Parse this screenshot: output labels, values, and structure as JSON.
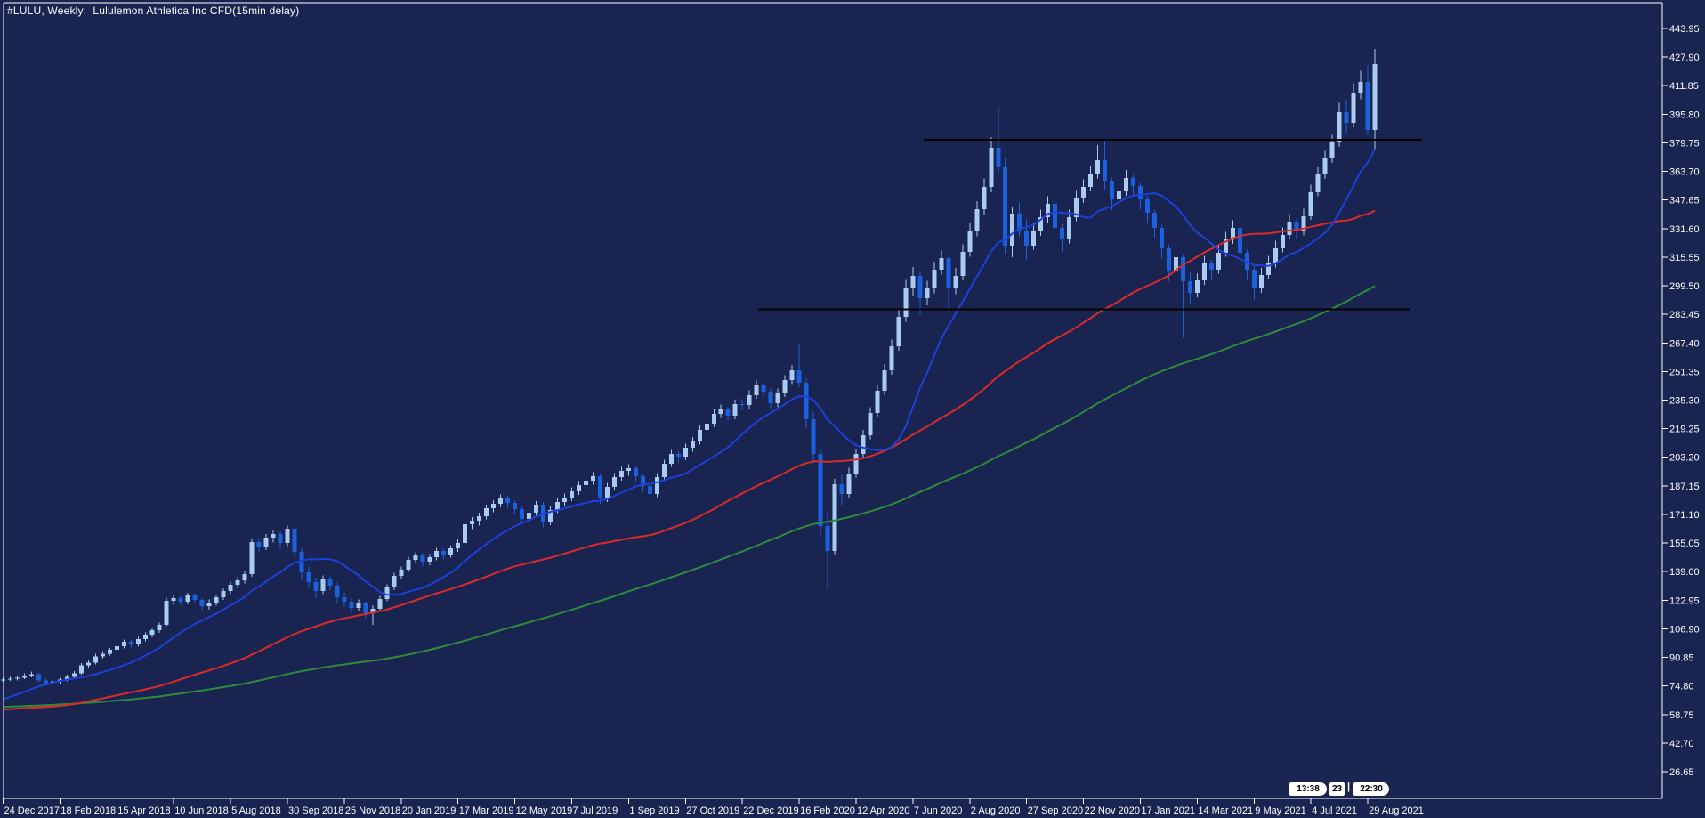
{
  "window": {
    "title": "#LULU, Weekly:  Lululemon Athletica Inc CFD(15min delay)",
    "background": "#192550",
    "frame_color": "#2c3c6a",
    "axis_color": "#ffffff",
    "text_color": "#ffffff"
  },
  "badges": {
    "left": "13:38",
    "mid": "23",
    "separator": "|",
    "right": "22:30"
  },
  "chart_data": {
    "type": "candlestick",
    "title": "#LULU, Weekly:  Lululemon Athletica Inc CFD(15min delay)",
    "symbol": "#LULU",
    "timeframe": "Weekly",
    "grid": false,
    "legend_position": "none",
    "colors": {
      "bull": "#a9cbf2",
      "bear": "#1b60dc",
      "level_line": "#000000"
    },
    "y_axis_ticks": [
      "443.95",
      "427.90",
      "411.85",
      "395.80",
      "379.75",
      "363.70",
      "347.65",
      "331.60",
      "315.55",
      "299.50",
      "283.45",
      "267.40",
      "251.35",
      "235.30",
      "219.25",
      "203.20",
      "187.15",
      "171.10",
      "155.05",
      "139.00",
      "122.95",
      "106.90",
      "90.85",
      "74.80",
      "58.75",
      "42.70",
      "26.65"
    ],
    "x_tick_labels": [
      "24 Dec 2017",
      "18 Feb 2018",
      "15 Apr 2018",
      "10 Jun 2018",
      "5 Aug 2018",
      "30 Sep 2018",
      "25 Nov 2018",
      "20 Jan 2019",
      "17 Mar 2019",
      "12 May 2019",
      "7 Jul 2019",
      "1 Sep 2019",
      "27 Oct 2019",
      "22 Dec 2019",
      "16 Feb 2020",
      "12 Apr 2020",
      "7 Jun 2020",
      "2 Aug 2020",
      "27 Sep 2020",
      "22 Nov 2020",
      "17 Jan 2021",
      "14 Mar 2021",
      "9 May 2021",
      "4 Jul 2021",
      "29 Aug 2021"
    ],
    "weeks_per_x_tick": 8,
    "horizontal_lines": [
      {
        "price": 381.4,
        "from_index": 129.5,
        "to_index": 199.6,
        "color": "#000000"
      },
      {
        "price": 286.3,
        "from_index": 106.3,
        "to_index": 198.0,
        "color": "#000000"
      }
    ],
    "moving_averages": [
      {
        "name": "slow",
        "period": 100,
        "color": "#2e8b3c",
        "width": 2
      },
      {
        "name": "mid",
        "period": 50,
        "color": "#dd2a28",
        "width": 2
      },
      {
        "name": "fast",
        "period": 13,
        "color": "#1c40dc",
        "width": 2
      }
    ],
    "ma_warmup_closes": [
      62,
      63,
      64,
      63,
      62,
      61,
      60,
      59,
      58,
      59,
      60,
      61,
      62,
      63,
      64,
      65,
      64,
      63,
      62,
      63,
      64,
      65,
      66,
      67,
      68,
      67,
      66,
      65,
      64,
      63,
      64,
      65,
      66,
      67,
      68,
      69,
      70,
      69,
      68,
      67,
      66,
      65,
      64,
      63,
      64,
      65,
      66,
      67,
      68,
      67,
      66,
      65,
      66,
      67,
      68,
      67,
      66,
      64,
      62,
      58,
      54,
      50,
      48,
      49,
      51,
      53,
      55,
      57,
      58,
      59,
      60,
      61,
      62,
      61,
      60,
      59,
      58,
      59,
      60,
      61,
      62,
      63,
      62,
      61,
      60,
      59,
      58,
      59,
      60,
      61,
      62,
      61,
      60,
      62,
      64,
      66,
      70,
      74,
      77,
      78.5
    ],
    "candles": [
      [
        78.0,
        79.6,
        76.9,
        78.5
      ],
      [
        78.5,
        80.1,
        77.6,
        78.9
      ],
      [
        78.9,
        80.6,
        77.9,
        79.5
      ],
      [
        79.5,
        81.8,
        78.6,
        80.5
      ],
      [
        80.5,
        82.9,
        79.6,
        81.5
      ],
      [
        81.5,
        82.4,
        76.9,
        78.0
      ],
      [
        78.0,
        79.0,
        75.2,
        76.5
      ],
      [
        76.5,
        78.6,
        75.4,
        77.5
      ],
      [
        77.5,
        79.5,
        76.2,
        78.5
      ],
      [
        78.5,
        81.1,
        77.4,
        80.0
      ],
      [
        80.0,
        83.2,
        79.1,
        82.0
      ],
      [
        82.0,
        87.6,
        81.2,
        86.5
      ],
      [
        86.5,
        89.4,
        85.1,
        88.0
      ],
      [
        88.0,
        92.8,
        87.0,
        91.5
      ],
      [
        91.5,
        94.3,
        90.2,
        93.0
      ],
      [
        93.0,
        96.2,
        91.8,
        95.0
      ],
      [
        95.0,
        98.4,
        93.7,
        97.0
      ],
      [
        97.0,
        100.9,
        95.8,
        99.5
      ],
      [
        99.5,
        100.8,
        96.4,
        98.0
      ],
      [
        98.0,
        102.3,
        96.9,
        101.0
      ],
      [
        101.0,
        104.9,
        99.8,
        103.5
      ],
      [
        103.5,
        107.4,
        102.2,
        106.0
      ],
      [
        106.0,
        110.4,
        104.6,
        109.0
      ],
      [
        109.0,
        124.3,
        108.0,
        122.5
      ],
      [
        122.5,
        126.1,
        120.4,
        124.0
      ],
      [
        124.0,
        125.2,
        119.8,
        122.0
      ],
      [
        122.0,
        127.2,
        120.6,
        125.5
      ],
      [
        125.5,
        126.8,
        121.0,
        123.0
      ],
      [
        123.0,
        124.2,
        117.3,
        119.5
      ],
      [
        119.5,
        123.3,
        117.6,
        121.5
      ],
      [
        121.5,
        126.2,
        119.9,
        124.5
      ],
      [
        124.5,
        129.7,
        123.0,
        128.0
      ],
      [
        128.0,
        133.3,
        126.4,
        131.5
      ],
      [
        131.5,
        135.9,
        129.8,
        134.0
      ],
      [
        134.0,
        139.4,
        132.3,
        137.5
      ],
      [
        137.5,
        157.4,
        136.2,
        155.5
      ],
      [
        155.5,
        157.9,
        149.8,
        153.0
      ],
      [
        153.0,
        160.2,
        151.1,
        158.0
      ],
      [
        158.0,
        162.5,
        155.4,
        160.0
      ],
      [
        160.0,
        161.6,
        151.9,
        155.0
      ],
      [
        155.0,
        164.8,
        152.8,
        163.0
      ],
      [
        163.0,
        164.3,
        147.2,
        150.0
      ],
      [
        150.0,
        152.0,
        135.1,
        138.5
      ],
      [
        138.5,
        141.8,
        129.9,
        133.0
      ],
      [
        133.0,
        135.6,
        124.2,
        128.0
      ],
      [
        128.0,
        136.8,
        126.3,
        134.5
      ],
      [
        134.5,
        136.4,
        128.3,
        131.0
      ],
      [
        131.0,
        132.8,
        121.6,
        124.5
      ],
      [
        124.5,
        127.3,
        119.7,
        122.0
      ],
      [
        122.0,
        124.0,
        115.9,
        118.5
      ],
      [
        118.5,
        123.4,
        116.5,
        121.0
      ],
      [
        121.0,
        122.2,
        112.8,
        115.5
      ],
      [
        115.5,
        120.0,
        109.2,
        118.0
      ],
      [
        118.0,
        125.3,
        116.6,
        123.5
      ],
      [
        123.5,
        131.8,
        122.3,
        130.0
      ],
      [
        130.0,
        138.3,
        128.7,
        136.5
      ],
      [
        136.5,
        141.9,
        134.9,
        140.0
      ],
      [
        140.0,
        147.3,
        138.6,
        145.5
      ],
      [
        145.5,
        149.9,
        143.7,
        148.0
      ],
      [
        148.0,
        149.3,
        142.1,
        144.5
      ],
      [
        144.5,
        148.9,
        142.6,
        147.0
      ],
      [
        147.0,
        152.4,
        145.4,
        150.5
      ],
      [
        150.5,
        151.9,
        145.8,
        148.5
      ],
      [
        148.5,
        153.9,
        146.9,
        152.0
      ],
      [
        152.0,
        157.0,
        150.2,
        155.0
      ],
      [
        155.0,
        167.4,
        153.9,
        165.5
      ],
      [
        165.5,
        169.6,
        162.8,
        167.5
      ],
      [
        167.5,
        172.2,
        164.9,
        170.0
      ],
      [
        170.0,
        176.6,
        168.3,
        174.5
      ],
      [
        174.5,
        179.2,
        172.4,
        177.0
      ],
      [
        177.0,
        182.3,
        175.1,
        180.0
      ],
      [
        180.0,
        181.5,
        174.6,
        177.5
      ],
      [
        177.5,
        179.0,
        171.2,
        174.0
      ],
      [
        174.0,
        175.6,
        165.7,
        168.5
      ],
      [
        168.5,
        174.1,
        166.5,
        172.0
      ],
      [
        172.0,
        178.7,
        170.3,
        176.5
      ],
      [
        176.5,
        178.0,
        163.9,
        167.0
      ],
      [
        167.0,
        175.6,
        165.2,
        173.5
      ],
      [
        173.5,
        180.2,
        171.8,
        178.0
      ],
      [
        178.0,
        182.8,
        176.1,
        180.5
      ],
      [
        180.5,
        186.3,
        178.7,
        184.0
      ],
      [
        184.0,
        189.8,
        182.2,
        187.5
      ],
      [
        187.5,
        192.3,
        185.4,
        190.0
      ],
      [
        190.0,
        194.8,
        187.9,
        192.5
      ],
      [
        192.5,
        193.8,
        176.9,
        180.0
      ],
      [
        180.0,
        188.8,
        178.0,
        186.5
      ],
      [
        186.5,
        194.3,
        184.6,
        192.0
      ],
      [
        192.0,
        197.9,
        190.1,
        195.5
      ],
      [
        195.5,
        199.4,
        192.9,
        197.0
      ],
      [
        197.0,
        198.5,
        189.6,
        192.5
      ],
      [
        192.5,
        194.1,
        183.8,
        187.0
      ],
      [
        187.0,
        189.0,
        179.2,
        182.5
      ],
      [
        182.5,
        194.4,
        180.8,
        192.0
      ],
      [
        192.0,
        201.9,
        190.3,
        199.5
      ],
      [
        199.5,
        207.4,
        197.7,
        205.0
      ],
      [
        205.0,
        206.6,
        199.9,
        203.5
      ],
      [
        203.5,
        210.9,
        201.6,
        208.5
      ],
      [
        208.5,
        214.5,
        206.4,
        212.0
      ],
      [
        212.0,
        221.0,
        210.2,
        218.5
      ],
      [
        218.5,
        224.6,
        216.3,
        222.0
      ],
      [
        222.0,
        230.1,
        220.0,
        227.5
      ],
      [
        227.5,
        232.7,
        225.2,
        230.0
      ],
      [
        230.0,
        231.6,
        223.8,
        226.5
      ],
      [
        226.5,
        235.6,
        224.6,
        233.0
      ],
      [
        233.0,
        236.0,
        229.5,
        232.5
      ],
      [
        232.5,
        240.7,
        230.4,
        238.0
      ],
      [
        238.0,
        246.3,
        236.0,
        243.5
      ],
      [
        243.5,
        245.1,
        236.9,
        240.0
      ],
      [
        240.0,
        241.6,
        230.5,
        233.5
      ],
      [
        233.5,
        241.8,
        231.4,
        239.0
      ],
      [
        239.0,
        249.4,
        237.0,
        246.5
      ],
      [
        246.5,
        255.0,
        244.3,
        252.0
      ],
      [
        252.0,
        266.8,
        242.5,
        245.0
      ],
      [
        245.0,
        247.5,
        219.2,
        224.5
      ],
      [
        224.5,
        229.0,
        199.8,
        205.0
      ],
      [
        205.0,
        208.1,
        158.4,
        164.5
      ],
      [
        164.5,
        172.4,
        128.9,
        150.5
      ],
      [
        150.5,
        191.2,
        148.7,
        188.0
      ],
      [
        188.0,
        193.7,
        176.4,
        182.5
      ],
      [
        182.5,
        197.3,
        180.6,
        194.0
      ],
      [
        194.0,
        208.0,
        191.9,
        205.0
      ],
      [
        205.0,
        218.6,
        202.9,
        215.5
      ],
      [
        215.5,
        231.3,
        213.4,
        228.0
      ],
      [
        228.0,
        243.9,
        225.8,
        240.5
      ],
      [
        240.5,
        255.6,
        238.2,
        252.0
      ],
      [
        252.0,
        269.3,
        249.6,
        265.5
      ],
      [
        265.5,
        286.1,
        263.0,
        282.0
      ],
      [
        282.0,
        302.8,
        279.4,
        298.5
      ],
      [
        298.5,
        310.0,
        294.1,
        305.0
      ],
      [
        305.0,
        307.2,
        283.4,
        292.5
      ],
      [
        292.5,
        302.3,
        288.6,
        298.0
      ],
      [
        298.0,
        313.0,
        295.2,
        308.5
      ],
      [
        308.5,
        319.6,
        305.4,
        315.0
      ],
      [
        315.0,
        316.7,
        285.3,
        298.5
      ],
      [
        298.5,
        309.6,
        294.7,
        305.0
      ],
      [
        305.0,
        322.8,
        302.5,
        318.5
      ],
      [
        318.5,
        334.6,
        315.8,
        330.0
      ],
      [
        330.0,
        347.1,
        327.2,
        342.5
      ],
      [
        342.5,
        359.8,
        339.5,
        355.0
      ],
      [
        355.0,
        383.0,
        351.9,
        377.0
      ],
      [
        377.0,
        399.9,
        363.0,
        366.0
      ],
      [
        366.0,
        371.2,
        317.5,
        322.0
      ],
      [
        322.0,
        343.9,
        315.6,
        340.0
      ],
      [
        340.0,
        346.2,
        326.9,
        330.5
      ],
      [
        330.5,
        337.2,
        313.9,
        322.0
      ],
      [
        322.0,
        334.6,
        319.8,
        330.5
      ],
      [
        330.5,
        342.2,
        327.6,
        338.0
      ],
      [
        338.0,
        349.8,
        335.0,
        345.5
      ],
      [
        345.5,
        347.2,
        326.8,
        332.0
      ],
      [
        332.0,
        334.0,
        318.4,
        325.5
      ],
      [
        325.5,
        342.2,
        323.3,
        338.0
      ],
      [
        338.0,
        352.8,
        335.7,
        348.5
      ],
      [
        348.5,
        359.3,
        345.9,
        355.0
      ],
      [
        355.0,
        366.9,
        352.4,
        362.5
      ],
      [
        362.5,
        378.5,
        359.8,
        370.0
      ],
      [
        370.0,
        381.2,
        352.9,
        358.5
      ],
      [
        358.5,
        360.3,
        341.9,
        348.0
      ],
      [
        348.0,
        356.9,
        344.8,
        352.5
      ],
      [
        352.5,
        364.4,
        349.9,
        360.0
      ],
      [
        360.0,
        361.7,
        349.6,
        355.5
      ],
      [
        355.5,
        357.3,
        342.3,
        348.0
      ],
      [
        348.0,
        350.0,
        334.9,
        340.5
      ],
      [
        340.5,
        342.3,
        326.4,
        332.0
      ],
      [
        332.0,
        333.8,
        314.8,
        320.5
      ],
      [
        320.5,
        322.4,
        301.9,
        308.0
      ],
      [
        308.0,
        319.7,
        305.4,
        315.5
      ],
      [
        315.5,
        317.2,
        270.2,
        302.0
      ],
      [
        302.0,
        306.9,
        289.8,
        295.5
      ],
      [
        295.5,
        306.6,
        293.0,
        302.5
      ],
      [
        302.5,
        316.2,
        300.1,
        312.0
      ],
      [
        312.0,
        313.9,
        302.6,
        308.5
      ],
      [
        308.5,
        322.2,
        306.3,
        318.0
      ],
      [
        318.0,
        329.7,
        315.7,
        325.5
      ],
      [
        325.5,
        336.2,
        322.9,
        332.0
      ],
      [
        332.0,
        333.8,
        313.9,
        318.0
      ],
      [
        318.0,
        319.8,
        302.6,
        308.5
      ],
      [
        308.5,
        310.3,
        291.9,
        298.0
      ],
      [
        298.0,
        309.6,
        295.6,
        305.5
      ],
      [
        305.5,
        316.2,
        303.1,
        312.0
      ],
      [
        312.0,
        324.7,
        309.8,
        320.5
      ],
      [
        320.5,
        332.2,
        318.2,
        328.0
      ],
      [
        328.0,
        339.7,
        325.6,
        335.5
      ],
      [
        335.5,
        337.3,
        324.9,
        330.0
      ],
      [
        330.0,
        342.7,
        327.8,
        338.5
      ],
      [
        338.5,
        356.3,
        336.4,
        352.0
      ],
      [
        352.0,
        366.1,
        349.7,
        362.0
      ],
      [
        362.0,
        375.2,
        359.4,
        371.0
      ],
      [
        371.0,
        384.3,
        368.5,
        380.0
      ],
      [
        380.0,
        402.1,
        377.4,
        397.0
      ],
      [
        397.0,
        404.3,
        385.2,
        391.0
      ],
      [
        391.0,
        413.2,
        388.4,
        408.0
      ],
      [
        408.0,
        420.3,
        404.1,
        414.0
      ],
      [
        414.0,
        423.2,
        384.3,
        387.0
      ],
      [
        387.0,
        432.4,
        376.3,
        424.0
      ]
    ]
  }
}
